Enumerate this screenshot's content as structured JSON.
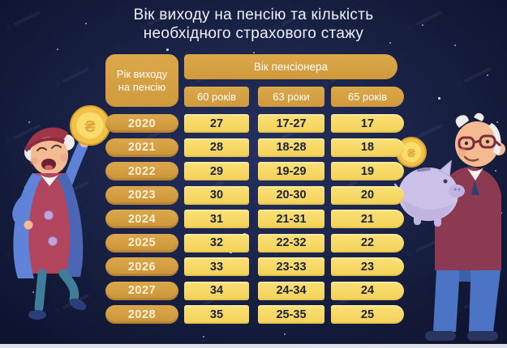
{
  "title": {
    "line1": "Вік виходу на пенсію та кількість",
    "line2": "необхідного страхового стажу"
  },
  "table": {
    "row_header": "Рік виходу на пенсію",
    "col_group_header": "Вік пенсіонера",
    "col_headers": [
      "60 років",
      "63 роки",
      "65 років"
    ],
    "rows": [
      {
        "year": "2020",
        "values": [
          "27",
          "17-27",
          "17"
        ]
      },
      {
        "year": "2021",
        "values": [
          "28",
          "18-28",
          "18"
        ]
      },
      {
        "year": "2022",
        "values": [
          "29",
          "19-29",
          "19"
        ]
      },
      {
        "year": "2023",
        "values": [
          "30",
          "20-30",
          "20"
        ]
      },
      {
        "year": "2024",
        "values": [
          "31",
          "21-31",
          "21"
        ]
      },
      {
        "year": "2025",
        "values": [
          "32",
          "22-32",
          "22"
        ]
      },
      {
        "year": "2026",
        "values": [
          "33",
          "23-33",
          "23"
        ]
      },
      {
        "year": "2027",
        "values": [
          "34",
          "24-34",
          "24"
        ]
      },
      {
        "year": "2028",
        "values": [
          "35",
          "25-35",
          "25"
        ]
      }
    ]
  },
  "chart_data": {
    "type": "table",
    "title": "Вік виходу на пенсію та кількість необхідного страхового стажу",
    "column_group": "Вік пенсіонера",
    "columns": [
      "Рік виходу на пенсію",
      "60 років",
      "63 роки",
      "65 років"
    ],
    "rows": [
      [
        "2020",
        "27",
        "17-27",
        "17"
      ],
      [
        "2021",
        "28",
        "18-28",
        "18"
      ],
      [
        "2022",
        "29",
        "19-29",
        "19"
      ],
      [
        "2023",
        "30",
        "20-30",
        "20"
      ],
      [
        "2024",
        "31",
        "21-31",
        "21"
      ],
      [
        "2025",
        "32",
        "22-32",
        "22"
      ],
      [
        "2026",
        "33",
        "23-33",
        "23"
      ],
      [
        "2027",
        "34",
        "24-34",
        "24"
      ],
      [
        "2028",
        "35",
        "25-35",
        "25"
      ]
    ]
  },
  "illustrations": {
    "left_character": "elderly-woman-holding-coin",
    "right_character": "elderly-man-holding-piggy-bank",
    "coin_symbol": "₴"
  },
  "watermark": {
    "symbol": "©"
  },
  "colors": {
    "background": "#151C3C",
    "gold_header": "#D8A243",
    "gold_year": "#D09A3F",
    "cell_yellow": "#F8DC66",
    "cell_text": "#1C2240",
    "header_text": "#FFFFFF",
    "title_text": "#EEF1F7"
  }
}
